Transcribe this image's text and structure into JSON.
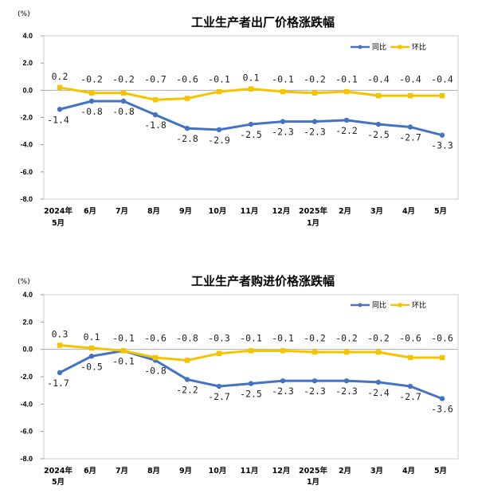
{
  "chart_data": [
    {
      "type": "line",
      "title": "工业生产者出厂价格涨跌幅",
      "unit": "(%)",
      "categories": [
        [
          "2024年",
          "5月"
        ],
        [
          "6月"
        ],
        [
          "7月"
        ],
        [
          "8月"
        ],
        [
          "9月"
        ],
        [
          "10月"
        ],
        [
          "11月"
        ],
        [
          "12月"
        ],
        [
          "2025年",
          "1月"
        ],
        [
          "2月"
        ],
        [
          "3月"
        ],
        [
          "4月"
        ],
        [
          "5月"
        ]
      ],
      "ylim": [
        -8.0,
        4.0
      ],
      "yticks": [
        "4.0",
        "2.0",
        "0.0",
        "-2.0",
        "-4.0",
        "-6.0",
        "-8.0"
      ],
      "ytick_values": [
        4,
        2,
        0,
        -2,
        -4,
        -6,
        -8
      ],
      "legend_position": "top-right",
      "series": [
        {
          "name": "同比",
          "color": "#4472C4",
          "values": [
            -1.4,
            -0.8,
            -0.8,
            -1.8,
            -2.8,
            -2.9,
            -2.5,
            -2.3,
            -2.3,
            -2.2,
            -2.5,
            -2.7,
            -3.3
          ],
          "labels": [
            "-1.4",
            "-0.8",
            "-0.8",
            "-1.8",
            "-2.8",
            "-2.9",
            "-2.5",
            "-2.3",
            "-2.3",
            "-2.2",
            "-2.5",
            "-2.7",
            "-3.3"
          ]
        },
        {
          "name": "环比",
          "color": "#F5C400",
          "values": [
            0.2,
            -0.2,
            -0.2,
            -0.7,
            -0.6,
            -0.1,
            0.1,
            -0.1,
            -0.2,
            -0.1,
            -0.4,
            -0.4,
            -0.4
          ],
          "labels": [
            "0.2",
            "-0.2",
            "-0.2",
            "-0.7",
            "-0.6",
            "-0.1",
            "0.1",
            "-0.1",
            "-0.2",
            "-0.1",
            "-0.4",
            "-0.4",
            "-0.4"
          ]
        }
      ]
    },
    {
      "type": "line",
      "title": "工业生产者购进价格涨跌幅",
      "unit": "(%)",
      "categories": [
        [
          "2024年",
          "5月"
        ],
        [
          "6月"
        ],
        [
          "7月"
        ],
        [
          "8月"
        ],
        [
          "9月"
        ],
        [
          "10月"
        ],
        [
          "11月"
        ],
        [
          "12月"
        ],
        [
          "2025年",
          "1月"
        ],
        [
          "2月"
        ],
        [
          "3月"
        ],
        [
          "4月"
        ],
        [
          "5月"
        ]
      ],
      "ylim": [
        -8.0,
        4.0
      ],
      "yticks": [
        "4.0",
        "2.0",
        "0.0",
        "-2.0",
        "-4.0",
        "-6.0",
        "-8.0"
      ],
      "ytick_values": [
        4,
        2,
        0,
        -2,
        -4,
        -6,
        -8
      ],
      "legend_position": "top-right",
      "series": [
        {
          "name": "同比",
          "color": "#4472C4",
          "values": [
            -1.7,
            -0.5,
            -0.1,
            -0.8,
            -2.2,
            -2.7,
            -2.5,
            -2.3,
            -2.3,
            -2.3,
            -2.4,
            -2.7,
            -3.6
          ],
          "labels": [
            "-1.7",
            "-0.5",
            "-0.1",
            "-0.8",
            "-2.2",
            "-2.7",
            "-2.5",
            "-2.3",
            "-2.3",
            "-2.3",
            "-2.4",
            "-2.7",
            "-3.6"
          ]
        },
        {
          "name": "环比",
          "color": "#F5C400",
          "values": [
            0.3,
            0.1,
            -0.1,
            -0.6,
            -0.8,
            -0.3,
            -0.1,
            -0.1,
            -0.2,
            -0.2,
            -0.2,
            -0.6,
            -0.6
          ],
          "labels": [
            "0.3",
            "0.1",
            "-0.1",
            "-0.6",
            "-0.8",
            "-0.3",
            "-0.1",
            "-0.1",
            "-0.2",
            "-0.2",
            "-0.2",
            "-0.6",
            "-0.6"
          ]
        }
      ]
    }
  ]
}
